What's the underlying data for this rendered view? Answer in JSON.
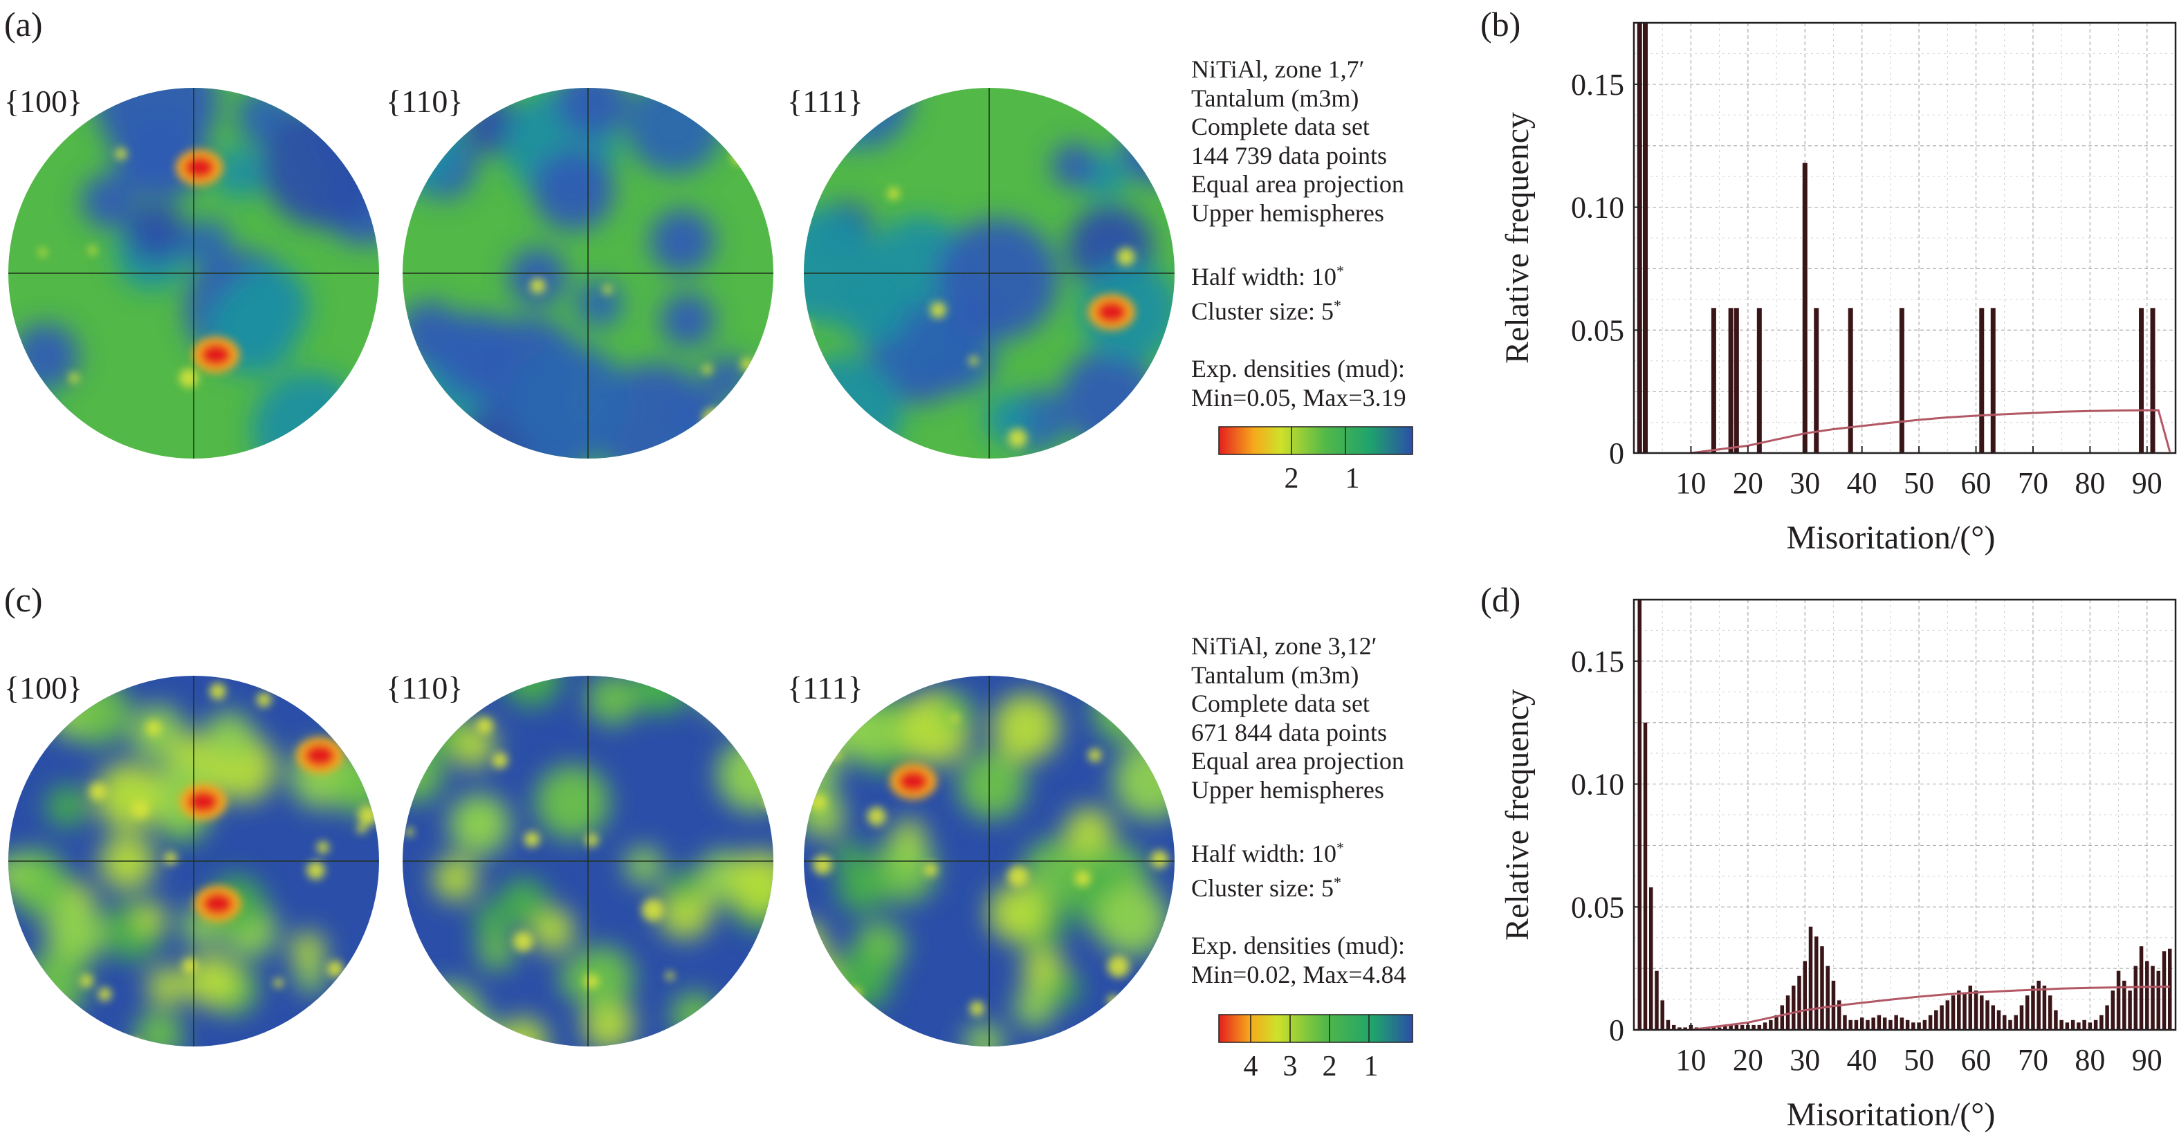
{
  "panels": [
    {
      "letter": "(a)",
      "poles": [
        "{100}",
        "{110}",
        "{111}"
      ],
      "info": {
        "line1": "NiTiAl, zone 1,7′",
        "line2": "Tantalum (m3m)",
        "line3": "Complete data set",
        "line4": "144 739 data points",
        "line5": "Equal area projection",
        "line6": "Upper hemispheres",
        "half_width_label": "Half width: 10",
        "half_width_mark": "*",
        "cluster_label": "Cluster size: 5",
        "cluster_mark": "*",
        "density_label": "Exp. densities (mud):",
        "density_range": "Min=0.05, Max=3.19"
      },
      "colorbar_ticks": [
        "2",
        "1"
      ],
      "hot_spots": [
        {
          "pole": 0,
          "u": 0.03,
          "v": 0.57,
          "level": 3.19
        },
        {
          "pole": 0,
          "u": 0.12,
          "v": -0.44,
          "level": 2.9
        },
        {
          "pole": 2,
          "u": 0.66,
          "v": -0.21,
          "level": 2.7
        }
      ]
    },
    {
      "letter": "(c)",
      "poles": [
        "{100}",
        "{110}",
        "{111}"
      ],
      "info": {
        "line1": "NiTiAl, zone 3,12′",
        "line2": "Tantalum (m3m)",
        "line3": "Complete data set",
        "line4": "671 844 data points",
        "line5": "Equal area projection",
        "line6": "Upper hemispheres",
        "half_width_label": "Half width: 10",
        "half_width_mark": "*",
        "cluster_label": "Cluster size: 5",
        "cluster_mark": "*",
        "density_label": "Exp. densities (mud):",
        "density_range": "Min=0.02, Max=4.84"
      },
      "colorbar_ticks": [
        "4",
        "3",
        "2",
        "1"
      ],
      "hot_spots": [
        {
          "pole": 0,
          "u": 0.68,
          "v": 0.57,
          "level": 4.84
        },
        {
          "pole": 0,
          "u": 0.05,
          "v": 0.32,
          "level": 4.5
        },
        {
          "pole": 0,
          "u": 0.13,
          "v": -0.23,
          "level": 4.1
        },
        {
          "pole": 2,
          "u": -0.41,
          "v": 0.43,
          "level": 4.0
        }
      ]
    }
  ],
  "colors": {
    "low": "#2b4fa8",
    "mid": "#52b848",
    "high": "#e41f1f",
    "bars": "#3a1518",
    "curve": "#b25865",
    "grid": "#b0b0b0"
  },
  "chart_data": [
    {
      "panel": "(b)",
      "type": "bar",
      "xlabel": "Misoritation/(°)",
      "ylabel": "Relative frequency",
      "xlim": [
        0,
        95
      ],
      "ylim": [
        0,
        0.175
      ],
      "xticks": [
        10,
        20,
        30,
        40,
        50,
        60,
        70,
        80,
        90
      ],
      "yticks": [
        0,
        0.05,
        0.1,
        0.15
      ],
      "ytick_labels": [
        "0",
        "0.05",
        "0.10",
        "0.15"
      ],
      "grid": true,
      "bars": {
        "x": [
          1,
          2,
          14,
          17,
          18,
          22,
          30,
          32,
          38,
          47,
          61,
          63,
          89,
          91
        ],
        "values": [
          0.175,
          0.175,
          0.059,
          0.059,
          0.059,
          0.059,
          0.118,
          0.059,
          0.059,
          0.059,
          0.059,
          0.059,
          0.059,
          0.059
        ]
      },
      "curve": {
        "x": [
          10,
          15,
          20,
          25,
          30,
          35,
          40,
          45,
          50,
          55,
          60,
          65,
          70,
          75,
          80,
          85,
          90,
          92,
          94
        ],
        "values": [
          0,
          0.0015,
          0.003,
          0.0055,
          0.008,
          0.0097,
          0.011,
          0.0123,
          0.0135,
          0.0145,
          0.0152,
          0.0158,
          0.0163,
          0.0168,
          0.0171,
          0.0173,
          0.0174,
          0.0174,
          0.0005
        ]
      }
    },
    {
      "panel": "(d)",
      "type": "bar",
      "xlabel": "Misoritation/(°)",
      "ylabel": "Relative frequency",
      "xlim": [
        0,
        95
      ],
      "ylim": [
        0,
        0.175
      ],
      "xticks": [
        10,
        20,
        30,
        40,
        50,
        60,
        70,
        80,
        90
      ],
      "yticks": [
        0,
        0.05,
        0.1,
        0.15
      ],
      "ytick_labels": [
        "0",
        "0.05",
        "0.10",
        "0.15"
      ],
      "grid": true,
      "bars": {
        "x": [
          1,
          2,
          3,
          4,
          5,
          6,
          7,
          8,
          9,
          10,
          11,
          12,
          13,
          14,
          15,
          16,
          17,
          18,
          19,
          20,
          21,
          22,
          23,
          24,
          25,
          26,
          27,
          28,
          29,
          30,
          31,
          32,
          33,
          34,
          35,
          36,
          37,
          38,
          39,
          40,
          41,
          42,
          43,
          44,
          45,
          46,
          47,
          48,
          49,
          50,
          51,
          52,
          53,
          54,
          55,
          56,
          57,
          58,
          59,
          60,
          61,
          62,
          63,
          64,
          65,
          66,
          67,
          68,
          69,
          70,
          71,
          72,
          73,
          74,
          75,
          76,
          77,
          78,
          79,
          80,
          81,
          82,
          83,
          84,
          85,
          86,
          87,
          88,
          89,
          90,
          91,
          92,
          93,
          94
        ],
        "values": [
          0.175,
          0.125,
          0.058,
          0.024,
          0.012,
          0.004,
          0.002,
          0.001,
          0.001,
          0.002,
          0.001,
          0.001,
          0.001,
          0.001,
          0.001,
          0.002,
          0.002,
          0.002,
          0.002,
          0.002,
          0.002,
          0.002,
          0.003,
          0.004,
          0.006,
          0.01,
          0.014,
          0.018,
          0.022,
          0.028,
          0.042,
          0.038,
          0.034,
          0.026,
          0.02,
          0.012,
          0.006,
          0.004,
          0.004,
          0.005,
          0.004,
          0.005,
          0.006,
          0.005,
          0.004,
          0.006,
          0.005,
          0.004,
          0.003,
          0.003,
          0.004,
          0.006,
          0.008,
          0.01,
          0.012,
          0.014,
          0.016,
          0.015,
          0.018,
          0.016,
          0.014,
          0.012,
          0.01,
          0.008,
          0.006,
          0.004,
          0.006,
          0.01,
          0.014,
          0.018,
          0.02,
          0.018,
          0.014,
          0.008,
          0.004,
          0.003,
          0.004,
          0.003,
          0.004,
          0.003,
          0.004,
          0.006,
          0.01,
          0.016,
          0.024,
          0.02,
          0.016,
          0.026,
          0.034,
          0.028,
          0.026,
          0.024,
          0.032,
          0.033
        ]
      },
      "curve": {
        "x": [
          10,
          15,
          20,
          25,
          30,
          35,
          40,
          45,
          50,
          55,
          60,
          65,
          70,
          75,
          80,
          85,
          90,
          94
        ],
        "values": [
          0,
          0.0015,
          0.003,
          0.0055,
          0.008,
          0.0097,
          0.011,
          0.0123,
          0.0135,
          0.0145,
          0.0152,
          0.0158,
          0.0163,
          0.0168,
          0.0171,
          0.0173,
          0.0175,
          0.0176
        ]
      }
    }
  ]
}
